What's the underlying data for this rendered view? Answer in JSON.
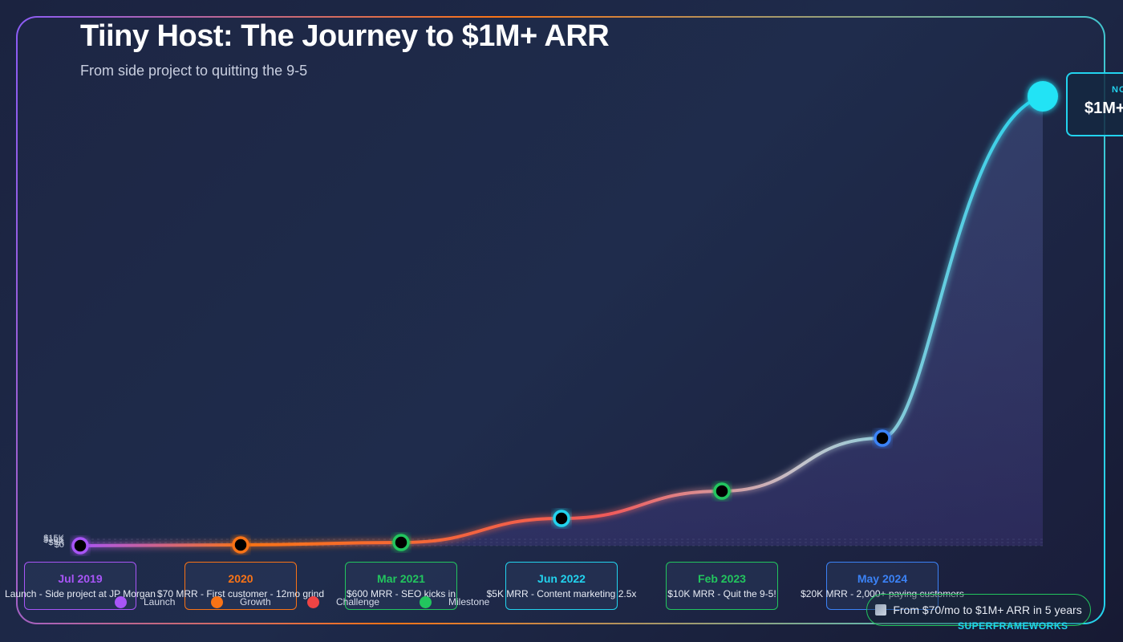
{
  "header": {
    "title": "Tiiny Host: The Journey to $1M+ ARR",
    "subtitle": "From side project to quitting the 9-5"
  },
  "chart_data": {
    "type": "line",
    "title": "Tiiny Host: The Journey to $1M+ ARR",
    "subtitle": "From side project to quitting the 9-5",
    "y_tick_labels": [
      "$15K",
      "$10K",
      "$5K",
      "$0"
    ],
    "points": [
      {
        "date": "Jul 2019",
        "desc": "Launch - Side project at JP Morgan",
        "category": "Launch",
        "color": "#a855f7"
      },
      {
        "date": "2020",
        "desc": "$70 MRR - First customer - 12mo grind",
        "category": "Growth",
        "color": "#f97316"
      },
      {
        "date": "Mar 2021",
        "desc": "$600 MRR - SEO kicks in",
        "category": "Milestone",
        "color": "#22c55e"
      },
      {
        "date": "Jun 2022",
        "desc": "$5K MRR - Content marketing 2.5x",
        "category": "Growth",
        "color": "#22d3ee"
      },
      {
        "date": "Feb 2023",
        "desc": "$10K MRR - Quit the 9-5!",
        "category": "Milestone",
        "color": "#22c55e"
      },
      {
        "date": "May 2024",
        "desc": "$20K MRR - 2,000+ paying customers",
        "category": "Growth",
        "color": "#3b82f6"
      }
    ],
    "now": {
      "label": "NO",
      "value": "$1M+"
    },
    "legend": [
      {
        "label": "Launch",
        "color": "#a855f7"
      },
      {
        "label": "Growth",
        "color": "#f97316"
      },
      {
        "label": "Challenge",
        "color": "#ef4444"
      },
      {
        "label": "Milestone",
        "color": "#22c55e"
      }
    ]
  },
  "footer": {
    "stat": "From $70/mo to $1M+ ARR in 5 years",
    "brand": "SUPERFRAMEWORKS"
  }
}
